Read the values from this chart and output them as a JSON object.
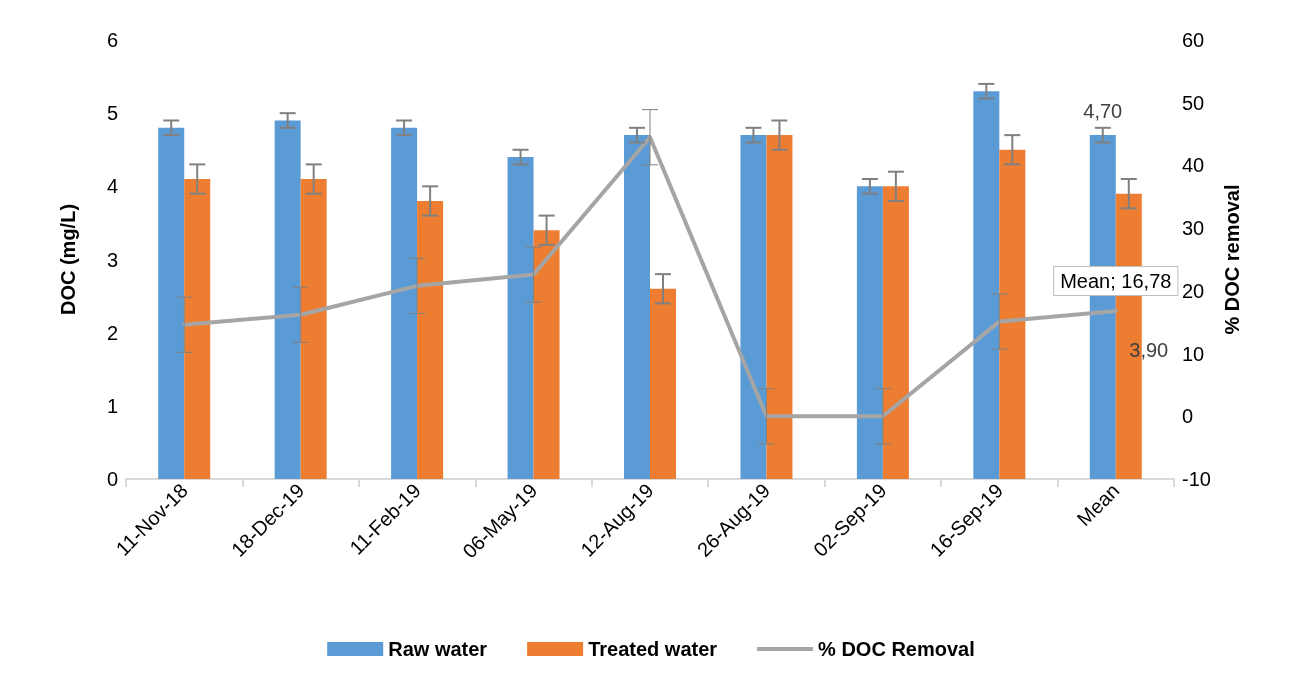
{
  "chart_data": {
    "type": "bar",
    "ylabel": "DOC (mg/L)",
    "y2label": "% DOC removal",
    "categories": [
      "11-Nov-18",
      "18-Dec-19",
      "11-Feb-19",
      "06-May-19",
      "12-Aug-19",
      "26-Aug-19",
      "02-Sep-19",
      "16-Sep-19",
      "Mean"
    ],
    "series": [
      {
        "name": "Raw water",
        "type": "bar",
        "color": "#5b9bd5",
        "values": [
          4.8,
          4.9,
          4.8,
          4.4,
          4.7,
          4.7,
          4.0,
          5.3,
          4.7
        ],
        "errors": [
          0.1,
          0.1,
          0.1,
          0.1,
          0.1,
          0.1,
          0.1,
          0.1,
          0.1
        ],
        "value_labels": [
          null,
          null,
          null,
          null,
          null,
          null,
          null,
          null,
          "4,70"
        ]
      },
      {
        "name": "Treated water",
        "type": "bar",
        "color": "#ed7d31",
        "values": [
          4.1,
          4.1,
          3.8,
          3.4,
          2.6,
          4.7,
          4.0,
          4.5,
          3.9
        ],
        "errors": [
          0.2,
          0.2,
          0.2,
          0.2,
          0.2,
          0.2,
          0.2,
          0.2,
          0.2
        ],
        "value_labels": [
          null,
          null,
          null,
          null,
          null,
          null,
          null,
          null,
          "3,90"
        ]
      },
      {
        "name": "% DOC Removal",
        "type": "line",
        "axis": "y2",
        "color": "#a5a5a5",
        "values": [
          14.6,
          16.2,
          20.8,
          22.6,
          44.5,
          0,
          0,
          15.1,
          16.78
        ],
        "errors": [
          4.4,
          4.4,
          4.4,
          4.4,
          4.4,
          4.4,
          4.4,
          4.4,
          null
        ],
        "value_labels": [
          null,
          null,
          null,
          null,
          null,
          null,
          null,
          null,
          "Mean; 16,78"
        ]
      }
    ],
    "ylim": [
      0,
      6
    ],
    "yticks": [
      0,
      1,
      2,
      3,
      4,
      5,
      6
    ],
    "y2lim": [
      -10,
      60
    ],
    "y2ticks": [
      -10,
      0,
      10,
      20,
      30,
      40,
      50,
      60
    ],
    "grid": false,
    "legend": "bottom",
    "marker": "none",
    "line_style": "solid"
  }
}
